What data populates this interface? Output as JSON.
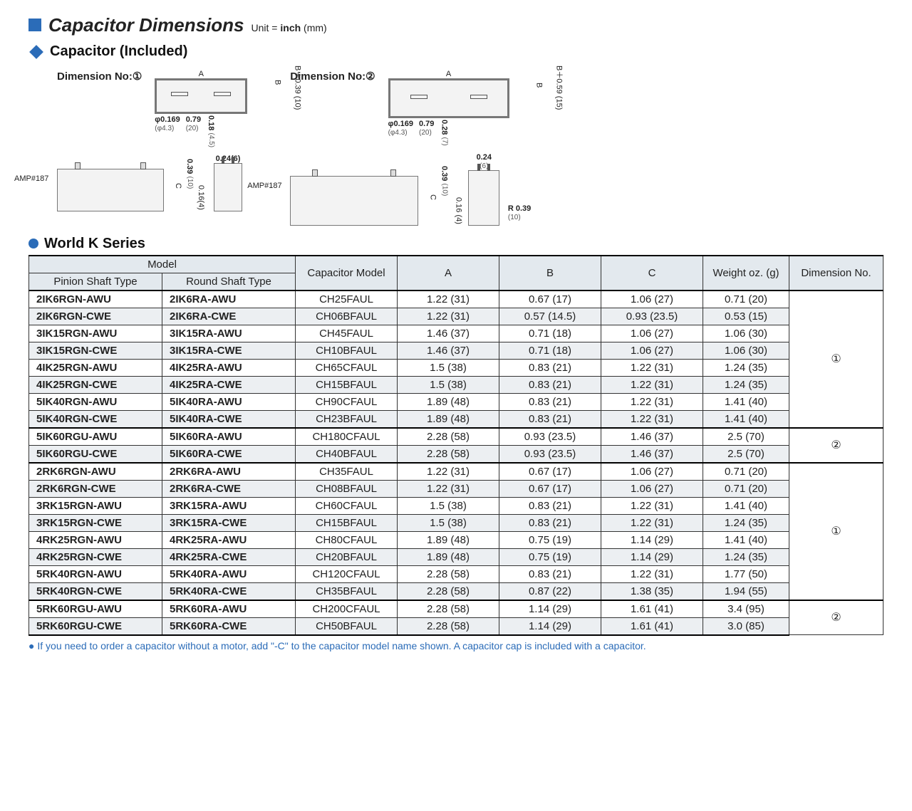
{
  "title": {
    "main": "Capacitor Dimensions",
    "unit_label": "Unit = ",
    "unit_bold": "inch",
    "unit_paren": " (mm)"
  },
  "subheading": "Capacitor (Included)",
  "series_heading": "World K Series",
  "diagrams": {
    "d1": {
      "label": "Dimension No:①",
      "A": "A",
      "B": "B",
      "Bplus": "B＋0.39 (10)",
      "phi": "φ0.169",
      "phi_mm": "(φ4.3)",
      "w20": "0.79",
      "w20mm": "(20)",
      "h45": "0.18",
      "h45mm": "(4.5)",
      "amp": "AMP#187",
      "h10": "0.39",
      "h10mm": "(10)",
      "h4": "0.16(4)",
      "C": "C",
      "side": "0.24(6)"
    },
    "d2": {
      "label": "Dimension No:②",
      "A": "A",
      "B": "B",
      "Bplus": "B＋0.59 (15)",
      "phi": "φ0.169",
      "phi_mm": "(φ4.3)",
      "w20": "0.79",
      "w20mm": "(20)",
      "h7": "0.28",
      "h7mm": "(7)",
      "amp": "AMP#187",
      "h10": "0.39",
      "h10mm": "(10)",
      "h4": "0.16 (4)",
      "C": "C",
      "side": "0.24",
      "sidemm": "(6)",
      "r": "R 0.39",
      "rmm": "(10)"
    }
  },
  "headers": {
    "model": "Model",
    "pinion": "Pinion Shaft Type",
    "round": "Round Shaft Type",
    "cap_model": "Capacitor Model",
    "A": "A",
    "B": "B",
    "C": "C",
    "weight": "Weight oz. (g)",
    "dim_no": "Dimension No."
  },
  "rows": [
    {
      "p": "2IK6RGN-AWU",
      "r": "2IK6RA-AWU",
      "cm": "CH25FAUL",
      "A": "1.22 (31)",
      "B": "0.67 (17)",
      "C": "1.06 (27)",
      "W": "0.71 (20)"
    },
    {
      "p": "2IK6RGN-CWE",
      "r": "2IK6RA-CWE",
      "cm": "CH06BFAUL",
      "A": "1.22 (31)",
      "B": "0.57 (14.5)",
      "C": "0.93 (23.5)",
      "W": "0.53 (15)"
    },
    {
      "p": "3IK15RGN-AWU",
      "r": "3IK15RA-AWU",
      "cm": "CH45FAUL",
      "A": "1.46 (37)",
      "B": "0.71 (18)",
      "C": "1.06 (27)",
      "W": "1.06 (30)"
    },
    {
      "p": "3IK15RGN-CWE",
      "r": "3IK15RA-CWE",
      "cm": "CH10BFAUL",
      "A": "1.46 (37)",
      "B": "0.71 (18)",
      "C": "1.06 (27)",
      "W": "1.06 (30)"
    },
    {
      "p": "4IK25RGN-AWU",
      "r": "4IK25RA-AWU",
      "cm": "CH65CFAUL",
      "A": "1.5 (38)",
      "B": "0.83 (21)",
      "C": "1.22 (31)",
      "W": "1.24 (35)"
    },
    {
      "p": "4IK25RGN-CWE",
      "r": "4IK25RA-CWE",
      "cm": "CH15BFAUL",
      "A": "1.5 (38)",
      "B": "0.83 (21)",
      "C": "1.22 (31)",
      "W": "1.24 (35)"
    },
    {
      "p": "5IK40RGN-AWU",
      "r": "5IK40RA-AWU",
      "cm": "CH90CFAUL",
      "A": "1.89 (48)",
      "B": "0.83 (21)",
      "C": "1.22 (31)",
      "W": "1.41 (40)"
    },
    {
      "p": "5IK40RGN-CWE",
      "r": "5IK40RA-CWE",
      "cm": "CH23BFAUL",
      "A": "1.89 (48)",
      "B": "0.83 (21)",
      "C": "1.22 (31)",
      "W": "1.41 (40)"
    },
    {
      "p": "5IK60RGU-AWU",
      "r": "5IK60RA-AWU",
      "cm": "CH180CFAUL",
      "A": "2.28 (58)",
      "B": "0.93 (23.5)",
      "C": "1.46 (37)",
      "W": "2.5 (70)"
    },
    {
      "p": "5IK60RGU-CWE",
      "r": "5IK60RA-CWE",
      "cm": "CH40BFAUL",
      "A": "2.28 (58)",
      "B": "0.93 (23.5)",
      "C": "1.46 (37)",
      "W": "2.5 (70)"
    },
    {
      "p": "2RK6RGN-AWU",
      "r": "2RK6RA-AWU",
      "cm": "CH35FAUL",
      "A": "1.22 (31)",
      "B": "0.67 (17)",
      "C": "1.06 (27)",
      "W": "0.71 (20)"
    },
    {
      "p": "2RK6RGN-CWE",
      "r": "2RK6RA-CWE",
      "cm": "CH08BFAUL",
      "A": "1.22 (31)",
      "B": "0.67 (17)",
      "C": "1.06 (27)",
      "W": "0.71 (20)"
    },
    {
      "p": "3RK15RGN-AWU",
      "r": "3RK15RA-AWU",
      "cm": "CH60CFAUL",
      "A": "1.5 (38)",
      "B": "0.83 (21)",
      "C": "1.22 (31)",
      "W": "1.41 (40)"
    },
    {
      "p": "3RK15RGN-CWE",
      "r": "3RK15RA-CWE",
      "cm": "CH15BFAUL",
      "A": "1.5 (38)",
      "B": "0.83 (21)",
      "C": "1.22 (31)",
      "W": "1.24 (35)"
    },
    {
      "p": "4RK25RGN-AWU",
      "r": "4RK25RA-AWU",
      "cm": "CH80CFAUL",
      "A": "1.89 (48)",
      "B": "0.75 (19)",
      "C": "1.14 (29)",
      "W": "1.41 (40)"
    },
    {
      "p": "4RK25RGN-CWE",
      "r": "4RK25RA-CWE",
      "cm": "CH20BFAUL",
      "A": "1.89 (48)",
      "B": "0.75 (19)",
      "C": "1.14 (29)",
      "W": "1.24 (35)"
    },
    {
      "p": "5RK40RGN-AWU",
      "r": "5RK40RA-AWU",
      "cm": "CH120CFAUL",
      "A": "2.28 (58)",
      "B": "0.83 (21)",
      "C": "1.22 (31)",
      "W": "1.77 (50)"
    },
    {
      "p": "5RK40RGN-CWE",
      "r": "5RK40RA-CWE",
      "cm": "CH35BFAUL",
      "A": "2.28 (58)",
      "B": "0.87 (22)",
      "C": "1.38 (35)",
      "W": "1.94 (55)"
    },
    {
      "p": "5RK60RGU-AWU",
      "r": "5RK60RA-AWU",
      "cm": "CH200CFAUL",
      "A": "2.28 (58)",
      "B": "1.14 (29)",
      "C": "1.61 (41)",
      "W": "3.4 (95)"
    },
    {
      "p": "5RK60RGU-CWE",
      "r": "5RK60RA-CWE",
      "cm": "CH50BFAUL",
      "A": "2.28 (58)",
      "B": "1.14 (29)",
      "C": "1.61 (41)",
      "W": "3.0 (85)"
    }
  ],
  "dim_groups": [
    "①",
    "②",
    "①",
    "②"
  ],
  "footnote": "If you need to order a capacitor without a motor, add \"-C\" to the capacitor model name shown. A capacitor cap is included with a capacitor."
}
